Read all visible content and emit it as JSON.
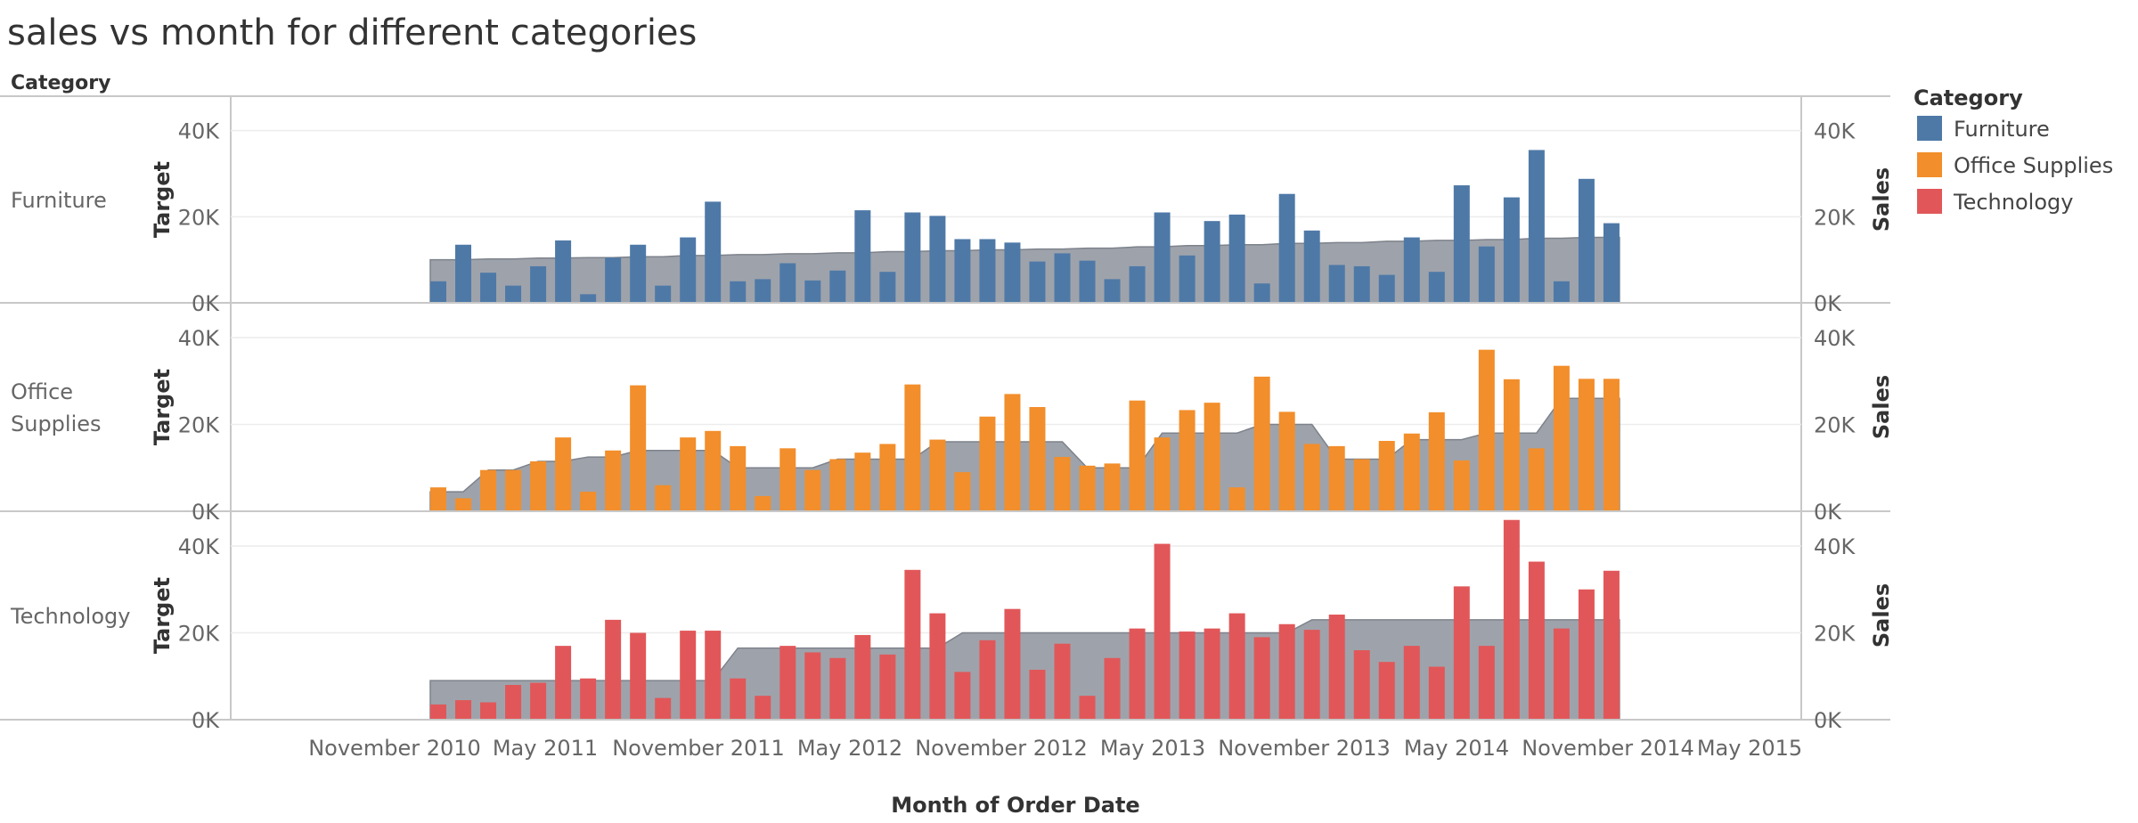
{
  "title": "sales vs month for different categories",
  "chart_data": {
    "type": "bar",
    "title": "sales vs month for different categories",
    "xlabel": "Month of Order Date",
    "row_header": "Category",
    "left_axis_label": "Target",
    "right_axis_label": "Sales",
    "ylim": [
      0,
      48000
    ],
    "y_ticks": [
      {
        "v": 0,
        "label": "0K"
      },
      {
        "v": 20000,
        "label": "20K"
      },
      {
        "v": 40000,
        "label": "40K"
      }
    ],
    "x_ticks": [
      "November 2010",
      "May 2011",
      "November 2011",
      "May 2012",
      "November 2012",
      "May 2013",
      "November 2013",
      "May 2014",
      "November 2014",
      "May 2015"
    ],
    "months": [
      "2011-01",
      "2011-02",
      "2011-03",
      "2011-04",
      "2011-05",
      "2011-06",
      "2011-07",
      "2011-08",
      "2011-09",
      "2011-10",
      "2011-11",
      "2011-12",
      "2012-01",
      "2012-02",
      "2012-03",
      "2012-04",
      "2012-05",
      "2012-06",
      "2012-07",
      "2012-08",
      "2012-09",
      "2012-10",
      "2012-11",
      "2012-12",
      "2013-01",
      "2013-02",
      "2013-03",
      "2013-04",
      "2013-05",
      "2013-06",
      "2013-07",
      "2013-08",
      "2013-09",
      "2013-10",
      "2013-11",
      "2013-12",
      "2014-01",
      "2014-02",
      "2014-03",
      "2014-04",
      "2014-05",
      "2014-06",
      "2014-07",
      "2014-08",
      "2014-09",
      "2014-10",
      "2014-11",
      "2014-12"
    ],
    "legend": {
      "title": "Category",
      "position": "right",
      "items": [
        {
          "label": "Furniture",
          "color": "#4e79a7"
        },
        {
          "label": "Office Supplies",
          "color": "#f28e2b"
        },
        {
          "label": "Technology",
          "color": "#e15759"
        }
      ]
    },
    "target_color": "#9ea3ab",
    "series": [
      {
        "name": "Furniture",
        "label_lines": [
          "Furniture"
        ],
        "color": "#4e79a7",
        "sales": [
          5000,
          13500,
          7000,
          4000,
          8500,
          14500,
          2000,
          10500,
          13500,
          4000,
          15200,
          23500,
          5000,
          5500,
          9200,
          5200,
          7500,
          21500,
          7200,
          21000,
          20200,
          14800,
          14800,
          14000,
          9600,
          11500,
          9800,
          5500,
          8500,
          21000,
          11000,
          19000,
          20500,
          4500,
          25300,
          16800,
          8800,
          8500,
          6500,
          15200,
          7200,
          27300,
          13100,
          24500,
          35500,
          5000,
          28800,
          18500
        ],
        "target": [
          10000,
          10000,
          10200,
          10200,
          10400,
          10400,
          10500,
          10500,
          10700,
          10700,
          11000,
          11000,
          11200,
          11200,
          11400,
          11400,
          11600,
          11600,
          11900,
          11900,
          12100,
          12100,
          12300,
          12300,
          12500,
          12500,
          12700,
          12700,
          13000,
          13000,
          13300,
          13300,
          13500,
          13500,
          13800,
          13800,
          14000,
          14000,
          14300,
          14300,
          14500,
          14500,
          14700,
          14700,
          15000,
          15000,
          15200,
          15200
        ]
      },
      {
        "name": "Office Supplies",
        "label_lines": [
          "Office",
          "Supplies"
        ],
        "color": "#f28e2b",
        "sales": [
          5500,
          3000,
          9500,
          9500,
          11500,
          17000,
          4500,
          14000,
          29000,
          6000,
          17000,
          18500,
          15000,
          3500,
          14500,
          9500,
          12000,
          13500,
          15500,
          29200,
          16500,
          9000,
          21800,
          27000,
          24000,
          12500,
          10500,
          11000,
          25500,
          17000,
          23300,
          25000,
          5500,
          31000,
          22900,
          15500,
          15000,
          12000,
          16200,
          17900,
          22800,
          11700,
          37200,
          30400,
          14500,
          33500,
          30500,
          30500
        ],
        "target": [
          4500,
          4500,
          9500,
          9500,
          11500,
          11500,
          12500,
          12500,
          14000,
          14000,
          14000,
          14000,
          10000,
          10000,
          10000,
          10000,
          12000,
          12000,
          12000,
          12000,
          16000,
          16000,
          16000,
          16000,
          16000,
          16000,
          10000,
          10000,
          10000,
          18000,
          18000,
          18000,
          18000,
          20000,
          20000,
          20000,
          12000,
          12000,
          12000,
          16500,
          16500,
          16500,
          18000,
          18000,
          18000,
          26000,
          26000,
          26000
        ]
      },
      {
        "name": "Technology",
        "label_lines": [
          "Technology"
        ],
        "color": "#e15759",
        "sales": [
          3500,
          4500,
          4000,
          8000,
          8500,
          17000,
          9500,
          23000,
          20000,
          5000,
          20500,
          20500,
          9500,
          5500,
          17000,
          15500,
          14200,
          19500,
          15000,
          34500,
          24500,
          11000,
          18300,
          25500,
          11500,
          17500,
          5500,
          14200,
          21000,
          40500,
          20300,
          21000,
          24500,
          19000,
          22000,
          20700,
          24200,
          16000,
          13300,
          17000,
          12200,
          30700,
          17000,
          46000,
          36400,
          21000,
          30000,
          34300
        ],
        "target": [
          9000,
          9000,
          9000,
          9000,
          9000,
          9000,
          9000,
          9000,
          9000,
          9000,
          9000,
          9000,
          16500,
          16500,
          16500,
          16500,
          16500,
          16500,
          16500,
          16500,
          16500,
          20000,
          20000,
          20000,
          20000,
          20000,
          20000,
          20000,
          20000,
          20000,
          20000,
          20000,
          20000,
          20000,
          20000,
          23000,
          23000,
          23000,
          23000,
          23000,
          23000,
          23000,
          23000,
          23000,
          23000,
          23000,
          23000,
          23000
        ]
      }
    ]
  }
}
